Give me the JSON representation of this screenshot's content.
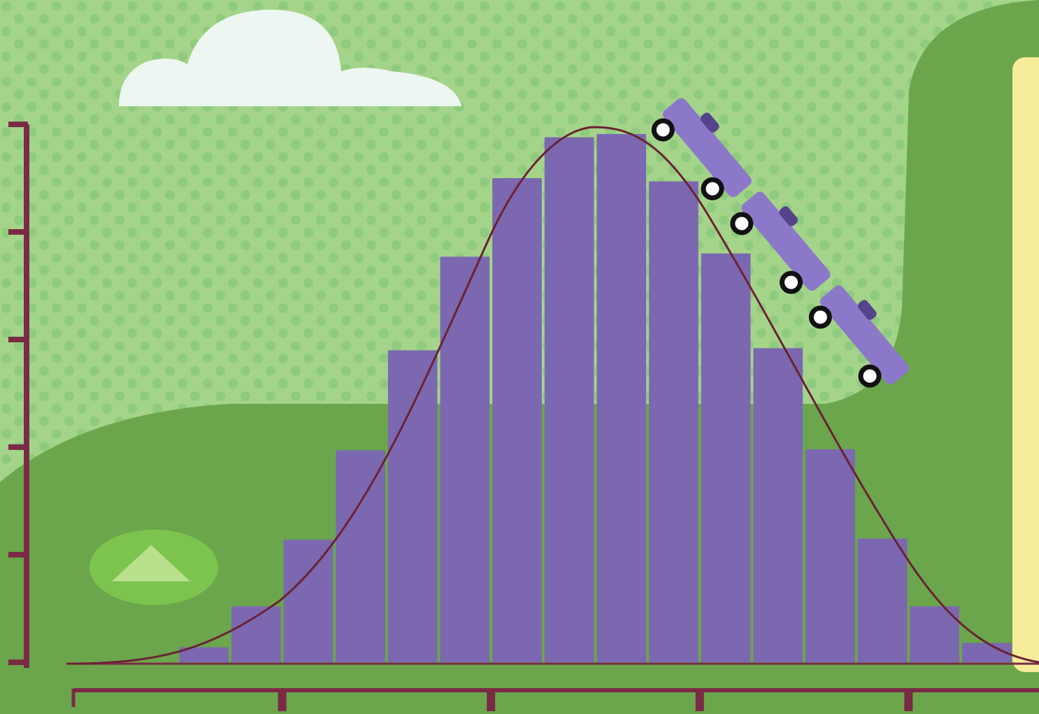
{
  "chart_data": {
    "type": "histogram",
    "bins": [
      0,
      1,
      2,
      3,
      4,
      5,
      6,
      7,
      8,
      9,
      10,
      11,
      12,
      13,
      14,
      15,
      16
    ],
    "values": [
      0.14,
      0.52,
      1.14,
      1.97,
      2.9,
      3.77,
      4.5,
      4.88,
      4.91,
      4.47,
      3.8,
      2.92,
      1.98,
      1.15,
      0.52,
      0.18
    ],
    "color": "#7b68b0",
    "xlim": [
      -2,
      16.5
    ],
    "xticks": [
      2,
      6,
      10,
      14
    ],
    "ylim": [
      0,
      5
    ],
    "yticks": [
      0,
      1,
      2,
      3,
      4,
      5
    ]
  }
}
